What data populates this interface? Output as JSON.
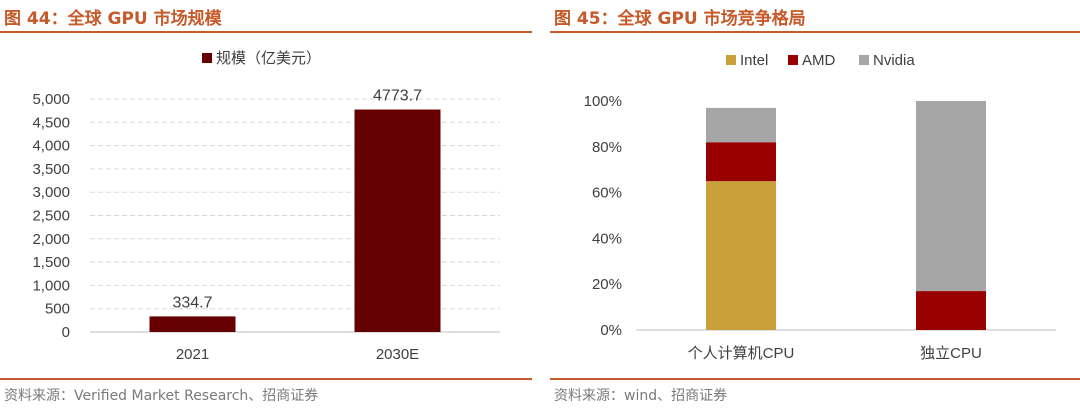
{
  "figures": [
    {
      "title": "图 44：全球 GPU 市场规模",
      "source": "资料来源：Verified Market Research、招商证券",
      "chart_data": {
        "type": "bar",
        "categories": [
          "2021",
          "2030E"
        ],
        "series": [
          {
            "name": "规模（亿美元）",
            "values": [
              334.7,
              4773.7
            ],
            "color": "#660000"
          }
        ],
        "data_labels": [
          "334.7",
          "4773.7"
        ],
        "y_ticks": [
          "0",
          "500",
          "1,000",
          "1,500",
          "2,000",
          "2,500",
          "3,000",
          "3,500",
          "4,000",
          "4,500",
          "5,000"
        ],
        "ylim": [
          0,
          5000
        ],
        "grid": true,
        "legend_position": "top"
      }
    },
    {
      "title": "图 45：全球 GPU 市场竞争格局",
      "source": "资料来源：wind、招商证券",
      "chart_data": {
        "type": "bar",
        "stacked": true,
        "categories": [
          "个人计算机CPU",
          "独立CPU"
        ],
        "series": [
          {
            "name": "Intel",
            "values": [
              65,
              0
            ],
            "color": "#c9a03a"
          },
          {
            "name": "AMD",
            "values": [
              17,
              17
            ],
            "color": "#990000"
          },
          {
            "name": "Nvidia",
            "values": [
              15,
              83
            ],
            "color": "#a6a6a6"
          }
        ],
        "y_ticks": [
          "0%",
          "20%",
          "40%",
          "60%",
          "80%",
          "100%"
        ],
        "ylim": [
          0,
          100
        ],
        "grid": false,
        "legend_position": "top"
      }
    }
  ],
  "colors": {
    "accent": "#c55a2a",
    "axis": "#bfbfbf",
    "grid": "#d9d9d9",
    "text": "#404040"
  }
}
